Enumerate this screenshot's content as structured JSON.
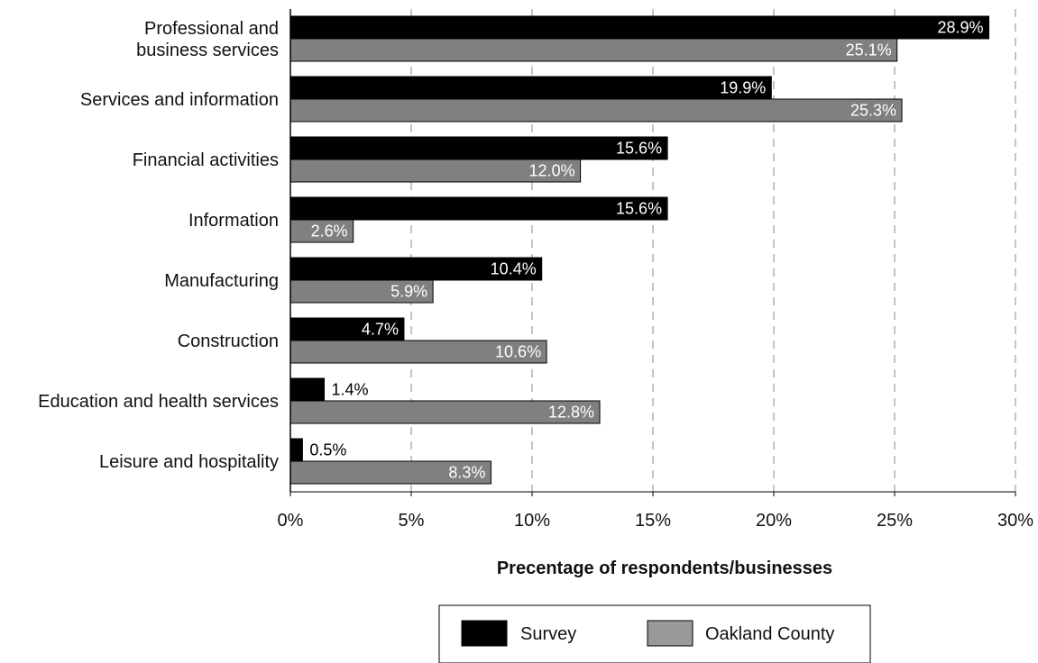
{
  "chart_data": {
    "type": "bar",
    "orientation": "horizontal",
    "categories": [
      "Professional and\nbusiness services",
      "Services and information",
      "Financial activities",
      "Information",
      "Manufacturing",
      "Construction",
      "Education and health services",
      "Leisure and hospitality"
    ],
    "series": [
      {
        "name": "Survey",
        "color": "#000000",
        "values": [
          28.9,
          19.9,
          15.6,
          15.6,
          10.4,
          4.7,
          1.4,
          0.5
        ],
        "labels": [
          "28.9%",
          "19.9%",
          "15.6%",
          "15.6%",
          "10.4%",
          "4.7%",
          "1.4%",
          "0.5%"
        ]
      },
      {
        "name": "Oakland County",
        "color": "#808080",
        "values": [
          25.1,
          25.3,
          12.0,
          2.6,
          5.9,
          10.6,
          12.8,
          8.3
        ],
        "labels": [
          "25.1%",
          "25.3%",
          "12.0%",
          "2.6%",
          "5.9%",
          "10.6%",
          "12.8%",
          "8.3%"
        ]
      }
    ],
    "title": "",
    "xlabel": "Precentage of respondents/businesses",
    "ylabel": "",
    "xlim": [
      0,
      30
    ],
    "xticks": [
      0,
      5,
      10,
      15,
      20,
      25,
      30
    ],
    "xtick_labels": [
      "0%",
      "5%",
      "10%",
      "15%",
      "20%",
      "25%",
      "30%"
    ],
    "grid": "vertical dashed",
    "legend_position": "bottom"
  },
  "legend": {
    "items": [
      {
        "label": "Survey",
        "color": "#000000"
      },
      {
        "label": "Oakland County",
        "color": "#999999"
      }
    ]
  }
}
